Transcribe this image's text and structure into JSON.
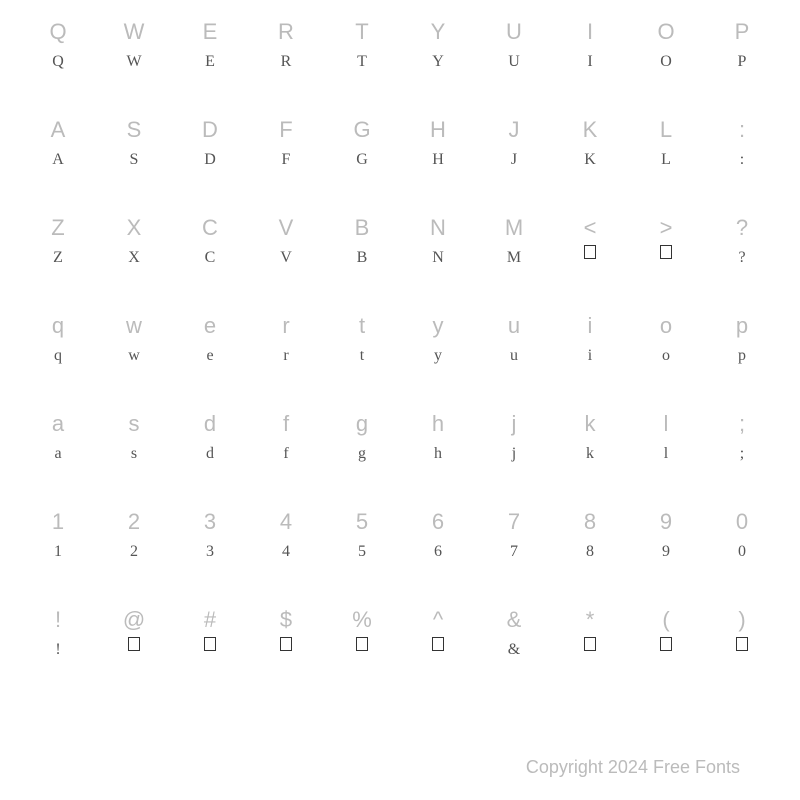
{
  "background_color": "#ffffff",
  "ref_color": "#bbbbbb",
  "glyph_color": "#333333",
  "ref_fontsize": 22,
  "glyph_fontsize": 16,
  "copyright_fontsize": 18,
  "copyright_color": "#bbbbbb",
  "copyright_text": "Copyright 2024 Free Fonts",
  "grid_columns": 10,
  "grid_rows": 7,
  "rows": [
    {
      "refs": [
        "Q",
        "W",
        "E",
        "R",
        "T",
        "Y",
        "U",
        "I",
        "O",
        "P"
      ],
      "glyphs": [
        "Q",
        "W",
        "E",
        "R",
        "T",
        "Y",
        "U",
        "I",
        "O",
        "P"
      ],
      "glyph_boxes": [
        false,
        false,
        false,
        false,
        false,
        false,
        false,
        false,
        false,
        false
      ]
    },
    {
      "refs": [
        "A",
        "S",
        "D",
        "F",
        "G",
        "H",
        "J",
        "K",
        "L",
        ":"
      ],
      "glyphs": [
        "A",
        "S",
        "D",
        "F",
        "G",
        "H",
        "J",
        "K",
        "L",
        ":"
      ],
      "glyph_boxes": [
        false,
        false,
        false,
        false,
        false,
        false,
        false,
        false,
        false,
        false
      ]
    },
    {
      "refs": [
        "Z",
        "X",
        "C",
        "V",
        "B",
        "N",
        "M",
        "<",
        ">",
        "?"
      ],
      "glyphs": [
        "Z",
        "X",
        "C",
        "V",
        "B",
        "N",
        "M",
        "",
        "",
        "?"
      ],
      "glyph_boxes": [
        false,
        false,
        false,
        false,
        false,
        false,
        false,
        true,
        true,
        false
      ]
    },
    {
      "refs": [
        "q",
        "w",
        "e",
        "r",
        "t",
        "y",
        "u",
        "i",
        "o",
        "p"
      ],
      "glyphs": [
        "q",
        "w",
        "e",
        "r",
        "t",
        "y",
        "u",
        "i",
        "o",
        "p"
      ],
      "glyph_boxes": [
        false,
        false,
        false,
        false,
        false,
        false,
        false,
        false,
        false,
        false
      ]
    },
    {
      "refs": [
        "a",
        "s",
        "d",
        "f",
        "g",
        "h",
        "j",
        "k",
        "l",
        ";"
      ],
      "glyphs": [
        "a",
        "s",
        "d",
        "f",
        "g",
        "h",
        "j",
        "k",
        "l",
        ";"
      ],
      "glyph_boxes": [
        false,
        false,
        false,
        false,
        false,
        false,
        false,
        false,
        false,
        false
      ]
    },
    {
      "refs": [
        "1",
        "2",
        "3",
        "4",
        "5",
        "6",
        "7",
        "8",
        "9",
        "0"
      ],
      "glyphs": [
        "1",
        "2",
        "3",
        "4",
        "5",
        "6",
        "7",
        "8",
        "9",
        "0"
      ],
      "glyph_boxes": [
        false,
        false,
        false,
        false,
        false,
        false,
        false,
        false,
        false,
        false
      ]
    },
    {
      "refs": [
        "!",
        "@",
        "#",
        "$",
        "%",
        "^",
        "&",
        "*",
        "(",
        ")"
      ],
      "glyphs": [
        "!",
        "",
        "",
        "",
        "",
        "",
        "&",
        "",
        "",
        ""
      ],
      "glyph_boxes": [
        false,
        true,
        true,
        true,
        true,
        true,
        false,
        true,
        true,
        true
      ]
    }
  ]
}
